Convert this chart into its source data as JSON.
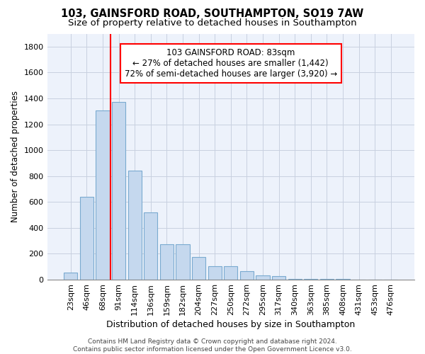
{
  "title": "103, GAINSFORD ROAD, SOUTHAMPTON, SO19 7AW",
  "subtitle": "Size of property relative to detached houses in Southampton",
  "xlabel": "Distribution of detached houses by size in Southampton",
  "ylabel": "Number of detached properties",
  "categories": [
    "23sqm",
    "46sqm",
    "68sqm",
    "91sqm",
    "114sqm",
    "136sqm",
    "159sqm",
    "182sqm",
    "204sqm",
    "227sqm",
    "250sqm",
    "272sqm",
    "295sqm",
    "317sqm",
    "340sqm",
    "363sqm",
    "385sqm",
    "408sqm",
    "431sqm",
    "453sqm",
    "476sqm"
  ],
  "bar_values": [
    55,
    640,
    1305,
    1370,
    840,
    520,
    275,
    275,
    175,
    105,
    105,
    65,
    35,
    30,
    5,
    5,
    5,
    5,
    3,
    2,
    2
  ],
  "bar_color": "#c5d8ee",
  "bar_edgecolor": "#7aaad0",
  "vline_x": 2.5,
  "vline_color": "red",
  "annotation_text": "103 GAINSFORD ROAD: 83sqm\n← 27% of detached houses are smaller (1,442)\n72% of semi-detached houses are larger (3,920) →",
  "ylim": [
    0,
    1900
  ],
  "yticks": [
    0,
    200,
    400,
    600,
    800,
    1000,
    1200,
    1400,
    1600,
    1800
  ],
  "grid_color": "#c8d0e0",
  "bg_color": "#edf2fb",
  "footnote": "Contains HM Land Registry data © Crown copyright and database right 2024.\nContains public sector information licensed under the Open Government Licence v3.0.",
  "title_fontsize": 10.5,
  "subtitle_fontsize": 9.5,
  "xlabel_fontsize": 9,
  "ylabel_fontsize": 8.5,
  "tick_fontsize": 8,
  "annot_fontsize": 8.5,
  "footnote_fontsize": 6.5
}
